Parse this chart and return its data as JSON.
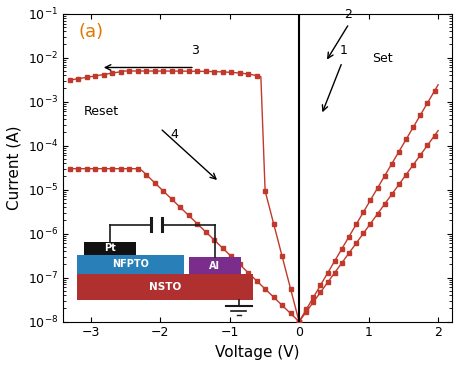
{
  "title": "(a)",
  "xlabel": "Voltage (V)",
  "ylabel": "Current (A)",
  "xlim": [
    -3.4,
    2.2
  ],
  "ylim_log": [
    -8,
    -1
  ],
  "background_color": "#ffffff",
  "plot_color": "#c0392b",
  "marker_size": 3.5,
  "title_color": "#e07800",
  "inset_colors": {
    "nsto": "#b03030",
    "nfpto": "#2980b9",
    "pt": "#111111",
    "al": "#7b2d8b",
    "wire": "#1a1a1a"
  }
}
